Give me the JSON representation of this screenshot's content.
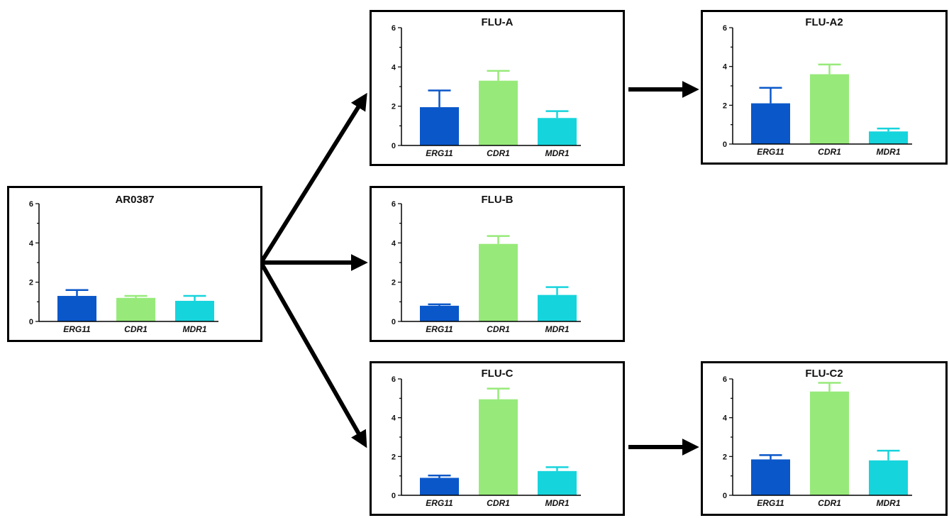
{
  "chart_data": [
    {
      "type": "bar",
      "title": "AR0387",
      "categories": [
        "ERG11",
        "CDR1",
        "MDR1"
      ],
      "values": [
        1.3,
        1.2,
        1.05
      ],
      "errors": [
        0.3,
        0.1,
        0.25
      ],
      "ylim": [
        0,
        6
      ],
      "yticks": [
        "0",
        "2",
        "4",
        "6"
      ]
    },
    {
      "type": "bar",
      "title": "FLU-A",
      "categories": [
        "ERG11",
        "CDR1",
        "MDR1"
      ],
      "values": [
        1.95,
        3.3,
        1.4
      ],
      "errors": [
        0.85,
        0.5,
        0.35
      ],
      "ylim": [
        0,
        6
      ],
      "yticks": [
        "0",
        "2",
        "4",
        "6"
      ]
    },
    {
      "type": "bar",
      "title": "FLU-A2",
      "categories": [
        "ERG11",
        "CDR1",
        "MDR1"
      ],
      "values": [
        2.1,
        3.6,
        0.65
      ],
      "errors": [
        0.8,
        0.5,
        0.15
      ],
      "ylim": [
        0,
        6
      ],
      "yticks": [
        "0",
        "2",
        "4",
        "6"
      ]
    },
    {
      "type": "bar",
      "title": "FLU-B",
      "categories": [
        "ERG11",
        "CDR1",
        "MDR1"
      ],
      "values": [
        0.8,
        3.95,
        1.35
      ],
      "errors": [
        0.07,
        0.4,
        0.4
      ],
      "ylim": [
        0,
        6
      ],
      "yticks": [
        "0",
        "2",
        "4",
        "6"
      ]
    },
    {
      "type": "bar",
      "title": "FLU-C",
      "categories": [
        "ERG11",
        "CDR1",
        "MDR1"
      ],
      "values": [
        0.9,
        4.95,
        1.25
      ],
      "errors": [
        0.12,
        0.55,
        0.2
      ],
      "ylim": [
        0,
        6
      ],
      "yticks": [
        "0",
        "2",
        "4",
        "6"
      ]
    },
    {
      "type": "bar",
      "title": "FLU-C2",
      "categories": [
        "ERG11",
        "CDR1",
        "MDR1"
      ],
      "values": [
        1.85,
        5.35,
        1.8
      ],
      "errors": [
        0.22,
        0.45,
        0.5
      ],
      "ylim": [
        0,
        6
      ],
      "yticks": [
        "0",
        "2",
        "4",
        "6"
      ]
    }
  ],
  "colors": {
    "ERG11": "#0a57c9",
    "CDR1": "#97ea7a",
    "MDR1": "#16d4dc",
    "frame": "#000000"
  }
}
